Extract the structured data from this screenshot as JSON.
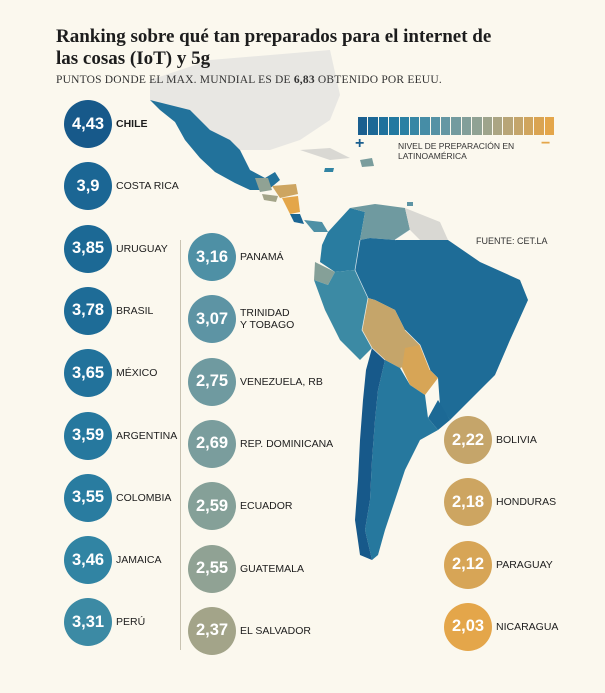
{
  "title": "Ranking sobre qué tan preparados para el internet de las cosas (IoT) y 5g",
  "subtitle_prefix": "PUNTOS DONDE EL MAX. MUNDIAL ES DE ",
  "subtitle_value": "6,83",
  "subtitle_suffix": " OBTENIDO POR EEUU.",
  "legend": {
    "label": "NIVEL DE PREPARACIÓN EN LATINOAMÉRICA",
    "plus": "+",
    "minus": "−",
    "scale_colors": [
      "#1a5f8f",
      "#1c6896",
      "#1f719c",
      "#2279a0",
      "#2a80a3",
      "#3787a5",
      "#468da6",
      "#5592a5",
      "#6497a3",
      "#739b9f",
      "#829f9a",
      "#90a294",
      "#9ea48c",
      "#aba583",
      "#b8a577",
      "#c4a56b",
      "#d0a55e",
      "#daa452",
      "#e4a64a"
    ]
  },
  "source": "FUENTE: CET.LA",
  "chart_data": {
    "type": "table",
    "title": "Ranking sobre qué tan preparados para el internet de las cosas (IoT) y 5g",
    "subtitle": "PUNTOS DONDE EL MAX. MUNDIAL ES DE 6,83 OBTENIDO POR EEUU.",
    "max_world": 6.83,
    "columns": [
      [
        {
          "country": "CHILE",
          "label": "4,43",
          "value": 4.43,
          "color": "#17598a"
        },
        {
          "country": "COSTA RICA",
          "label": "3,9",
          "value": 3.9,
          "color": "#1b6694"
        },
        {
          "country": "URUGUAY",
          "label": "3,85",
          "value": 3.85,
          "color": "#1c6995"
        },
        {
          "country": "BRASIL",
          "label": "3,78",
          "value": 3.78,
          "color": "#1e6c97"
        },
        {
          "country": "MÉXICO",
          "label": "3,65",
          "value": 3.65,
          "color": "#22729b"
        },
        {
          "country": "ARGENTINA",
          "label": "3,59",
          "value": 3.59,
          "color": "#26789e"
        },
        {
          "country": "COLOMBIA",
          "label": "3,55",
          "value": 3.55,
          "color": "#297ca0"
        },
        {
          "country": "JAMAICA",
          "label": "3,46",
          "value": 3.46,
          "color": "#3184a3"
        },
        {
          "country": "PERÚ",
          "label": "3,31",
          "value": 3.31,
          "color": "#3c8aa4"
        }
      ],
      [
        {
          "country": "PANAMÁ",
          "label": "3,16",
          "value": 3.16,
          "color": "#4e90a5"
        },
        {
          "country": "TRINIDAD\nY TOBAGO",
          "label": "3,07",
          "value": 3.07,
          "color": "#5d94a4"
        },
        {
          "country": "VENEZUELA, RB",
          "label": "2,75",
          "value": 2.75,
          "color": "#6f9aa0"
        },
        {
          "country": "REP. DOMINICANA",
          "label": "2,69",
          "value": 2.69,
          "color": "#7a9d9d"
        },
        {
          "country": "ECUADOR",
          "label": "2,59",
          "value": 2.59,
          "color": "#85a098"
        },
        {
          "country": "GUATEMALA",
          "label": "2,55",
          "value": 2.55,
          "color": "#90a294"
        },
        {
          "country": "EL SALVADOR",
          "label": "2,37",
          "value": 2.37,
          "color": "#a3a489"
        }
      ],
      [
        {
          "country": "BOLIVIA",
          "label": "2,22",
          "value": 2.22,
          "color": "#c5a56a"
        },
        {
          "country": "HONDURAS",
          "label": "2,18",
          "value": 2.18,
          "color": "#cda561"
        },
        {
          "country": "PARAGUAY",
          "label": "2,12",
          "value": 2.12,
          "color": "#d7a556"
        },
        {
          "country": "NICARAGUA",
          "label": "2,03",
          "value": 2.03,
          "color": "#e4a64a"
        }
      ]
    ]
  }
}
